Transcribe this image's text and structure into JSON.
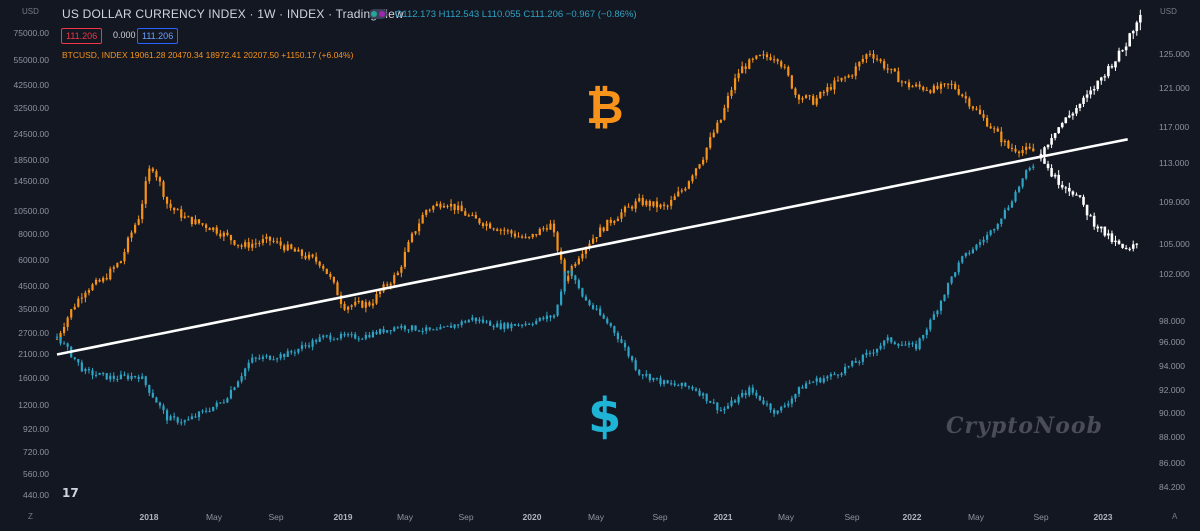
{
  "header": {
    "title": "US DOLLAR CURRENCY INDEX · 1W · INDEX · TradingView",
    "ohlc": "O112.173 H112.543 L110.055 C111.206 −0.967 (−0.86%)",
    "price_badge": "111.206",
    "zero_badge": "0.000",
    "price_badge2": "111.206",
    "btc_info": "BTCUSD, INDEX  19061.28 20470.34 18972.41 20207.50 +1150.17 (+6.04%)"
  },
  "corners": {
    "left_top": "USD",
    "right_top": "USD",
    "left_bottom": "Z",
    "right_bottom": "A"
  },
  "symbols": {
    "bitcoin": "₿",
    "dollar": "$"
  },
  "watermark": "CryptoNoob",
  "logo": "17",
  "colors": {
    "background": "#131722",
    "btc": "#f7931a",
    "dxy": "#2ea3c4",
    "projection": "#ffffff",
    "curve": "#ffffff"
  },
  "chart_data": {
    "type": "candlestick",
    "x_axis": [
      "2018",
      "May",
      "Sep",
      "2019",
      "May",
      "Sep",
      "2020",
      "May",
      "Sep",
      "2021",
      "May",
      "Sep",
      "2022",
      "May",
      "Sep",
      "2023"
    ],
    "left_axis": {
      "scale": "log",
      "ticks": [
        "75000.00",
        "55000.00",
        "42500.00",
        "32500.00",
        "24500.00",
        "18500.00",
        "14500.00",
        "10500.00",
        "8000.00",
        "6000.00",
        "4500.00",
        "3500.00",
        "2700.00",
        "2100.00",
        "1600.00",
        "1200.00",
        "920.00",
        "720.00",
        "560.00",
        "440.00"
      ]
    },
    "right_axis": {
      "scale": "linear",
      "ticks": [
        "125.000",
        "121.000",
        "117.000",
        "113.000",
        "109.000",
        "105.000",
        "102.000",
        "98.000",
        "96.000",
        "94.000",
        "92.000",
        "90.000",
        "88.000",
        "86.000",
        "84.200"
      ]
    },
    "series": [
      {
        "name": "BTCUSD",
        "axis": "left",
        "color": "#f7931a",
        "x": [
          2017.45,
          2017.6,
          2017.7,
          2017.8,
          2017.9,
          2017.96,
          2018.05,
          2018.15,
          2018.3,
          2018.45,
          2018.6,
          2018.75,
          2018.88,
          2019.0,
          2019.15,
          2019.3,
          2019.45,
          2019.55,
          2019.7,
          2019.85,
          2020.0,
          2020.12,
          2020.2,
          2020.3,
          2020.45,
          2020.6,
          2020.75,
          2020.85,
          2020.95,
          2021.05,
          2021.15,
          2021.25,
          2021.35,
          2021.45,
          2021.55,
          2021.65,
          2021.75,
          2021.85,
          2021.95,
          2022.05,
          2022.2,
          2022.3,
          2022.45,
          2022.6,
          2022.75
        ],
        "values": [
          2500,
          4300,
          4800,
          6000,
          10000,
          17500,
          11000,
          9500,
          8500,
          7000,
          7500,
          6500,
          5800,
          3600,
          3700,
          5200,
          10500,
          11500,
          9500,
          8500,
          7500,
          9000,
          4800,
          6800,
          9300,
          11500,
          10700,
          13500,
          19000,
          29000,
          50000,
          57000,
          58000,
          38000,
          35000,
          42000,
          47000,
          61000,
          50000,
          42000,
          40000,
          42000,
          30000,
          21000,
          20000
        ]
      },
      {
        "name": "DXY",
        "axis": "right",
        "color": "#2ea3c4",
        "x": [
          2017.45,
          2017.6,
          2017.75,
          2017.9,
          2018.05,
          2018.15,
          2018.35,
          2018.5,
          2018.7,
          2018.9,
          2019.1,
          2019.3,
          2019.5,
          2019.7,
          2019.85,
          2020.0,
          2020.15,
          2020.21,
          2020.3,
          2020.45,
          2020.6,
          2020.75,
          2020.9,
          2021.05,
          2021.2,
          2021.35,
          2021.5,
          2021.65,
          2021.8,
          2021.95,
          2022.1,
          2022.2,
          2022.35,
          2022.5,
          2022.6,
          2022.7,
          2022.75
        ],
        "values": [
          96.5,
          93.5,
          93.0,
          93.2,
          89.5,
          89.3,
          91.0,
          94.5,
          95.0,
          96.5,
          96.5,
          97.5,
          97.0,
          98.2,
          97.5,
          97.8,
          98.5,
          102.8,
          100.0,
          97.5,
          93.5,
          92.5,
          92.2,
          90.2,
          92.0,
          90.0,
          92.5,
          93.2,
          94.5,
          96.2,
          95.5,
          98.5,
          103.5,
          106.0,
          108.5,
          112.0,
          113.0
        ]
      },
      {
        "name": "DXY projection",
        "axis": "right",
        "color": "#ffffff",
        "x": [
          2022.78,
          2022.85,
          2022.95,
          2023.05,
          2023.1,
          2023.15,
          2023.25,
          2023.33
        ],
        "values": [
          114.0,
          116.5,
          118.5,
          120.5,
          122.0,
          123.5,
          126.0,
          128.5
        ]
      },
      {
        "name": "BTC projection",
        "axis": "left",
        "color": "#ffffff",
        "x": [
          2022.78,
          2022.85,
          2022.95,
          2023.05,
          2023.15,
          2023.25,
          2023.3
        ],
        "values": [
          19000,
          15000,
          13000,
          9500,
          7600,
          6500,
          7200
        ]
      },
      {
        "name": "Log curve",
        "axis": "left",
        "color": "#ffffff",
        "style": "line",
        "x": [
          2017.45,
          2023.25
        ],
        "values": [
          2100,
          23000
        ]
      }
    ],
    "grid": false,
    "legend": "none"
  }
}
